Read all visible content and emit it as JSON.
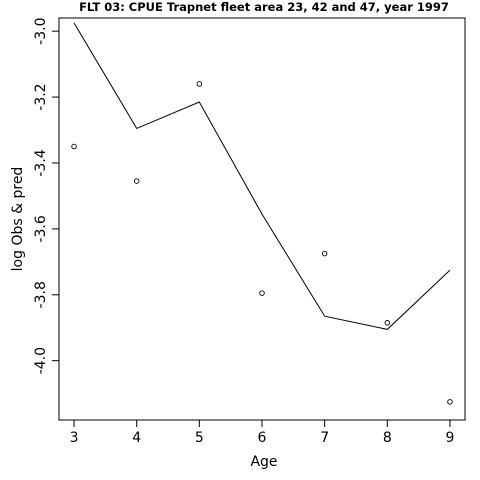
{
  "chart_data": {
    "type": "line",
    "title": "FLT 03: CPUE Trapnet fleet area 23, 42 and 47, year 1997",
    "xlabel": "Age",
    "ylabel": "log Obs & pred",
    "x_ticks": [
      3,
      4,
      5,
      6,
      7,
      8,
      9
    ],
    "y_ticks": [
      -3.0,
      -3.2,
      -3.4,
      -3.6,
      -3.8,
      -4.0
    ],
    "y_tick_labels": [
      "-3.0",
      "-3.2",
      "-3.4",
      "-3.6",
      "-3.8",
      "-4.0"
    ],
    "xlim": [
      2.76,
      9.24
    ],
    "ylim": [
      -4.18,
      -2.96
    ],
    "grid": false,
    "series": [
      {
        "kind": "observed-points",
        "x": [
          3,
          4,
          5,
          6,
          7,
          8,
          9
        ],
        "y": [
          -3.35,
          -3.455,
          -3.16,
          -3.795,
          -3.675,
          -3.885,
          -4.125
        ]
      },
      {
        "kind": "predicted-line",
        "x": [
          3,
          4,
          5,
          6,
          7,
          8,
          9
        ],
        "y": [
          -2.975,
          -3.295,
          -3.215,
          -3.555,
          -3.865,
          -3.905,
          -3.725
        ]
      }
    ]
  }
}
